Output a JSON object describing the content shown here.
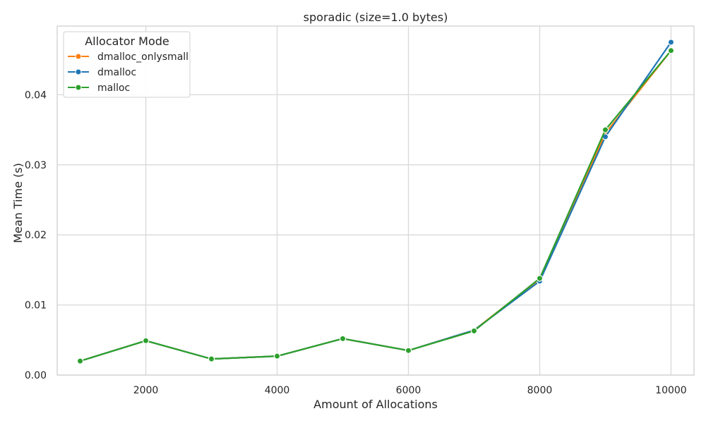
{
  "chart_data": {
    "type": "line",
    "title": "sporadic (size=1.0 bytes)",
    "xlabel": "Amount of Allocations",
    "ylabel": "Mean Time (s)",
    "x": [
      1000,
      2000,
      3000,
      4000,
      5000,
      6000,
      7000,
      8000,
      9000,
      10000
    ],
    "xlim": [
      650,
      10350
    ],
    "ylim": [
      0,
      0.0498
    ],
    "xticks": [
      2000,
      4000,
      6000,
      8000,
      10000
    ],
    "xtick_labels": [
      "2000",
      "4000",
      "6000",
      "8000",
      "10000"
    ],
    "yticks": [
      0,
      0.01,
      0.02,
      0.03,
      0.04
    ],
    "ytick_labels": [
      "0.00",
      "0.01",
      "0.02",
      "0.03",
      "0.04"
    ],
    "grid": true,
    "legend": {
      "title": "Allocator Mode",
      "placement": "top-left"
    },
    "series": [
      {
        "name": "dmalloc_onlysmall",
        "color": "#ff7f0e",
        "values": [
          0.002,
          0.0049,
          0.0023,
          0.0027,
          0.0052,
          0.0035,
          0.0064,
          0.0137,
          0.0345,
          0.0463
        ]
      },
      {
        "name": "dmalloc",
        "color": "#1f77b4",
        "values": [
          0.002,
          0.0049,
          0.0023,
          0.0027,
          0.0052,
          0.0035,
          0.0064,
          0.0134,
          0.034,
          0.0475
        ]
      },
      {
        "name": "malloc",
        "color": "#2ca02c",
        "values": [
          0.002,
          0.0049,
          0.0023,
          0.0027,
          0.0052,
          0.0035,
          0.0063,
          0.0138,
          0.035,
          0.0463
        ]
      }
    ]
  }
}
